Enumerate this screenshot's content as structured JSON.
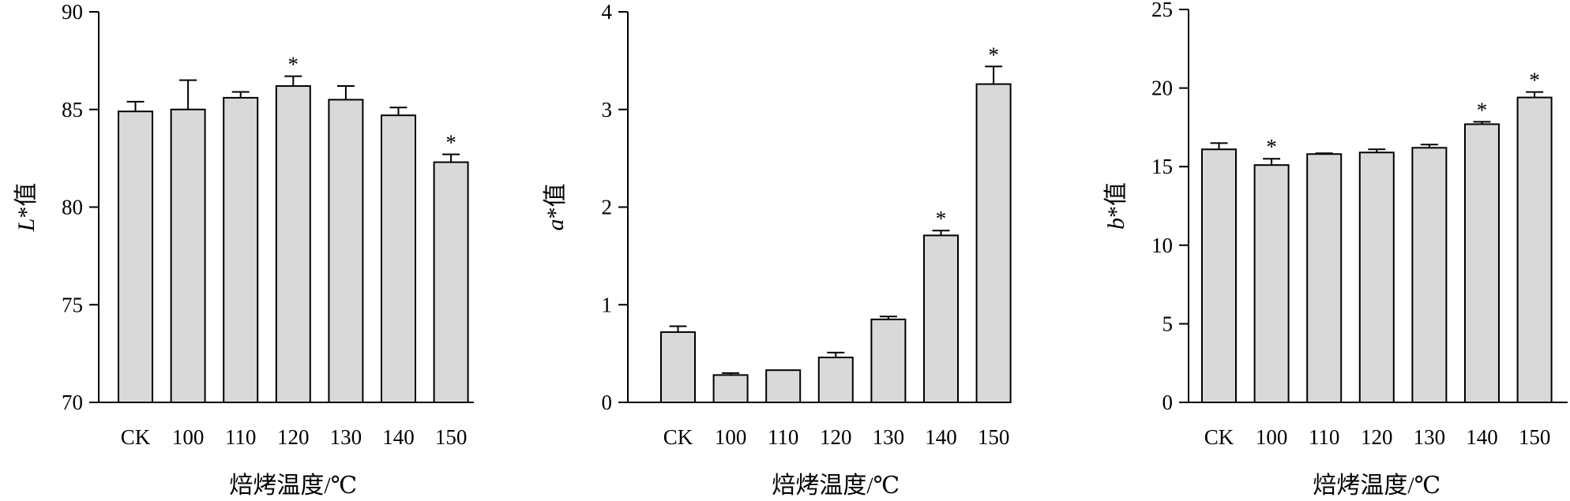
{
  "chart_data": [
    {
      "type": "bar",
      "categories": [
        "CK",
        "100",
        "110",
        "120",
        "130",
        "140",
        "150"
      ],
      "values": [
        84.9,
        85.0,
        85.6,
        86.2,
        85.5,
        84.7,
        82.3
      ],
      "errors": [
        0.5,
        1.5,
        0.3,
        0.5,
        0.7,
        0.4,
        0.4
      ],
      "significant": [
        false,
        false,
        false,
        true,
        false,
        false,
        true
      ],
      "marker": "*",
      "ylim": [
        70,
        90
      ],
      "yticks": [
        70,
        75,
        80,
        85,
        90
      ],
      "ylabel_var": "L",
      "ylabel_suffix": "*值",
      "xlabel": "焙烤温度/℃"
    },
    {
      "type": "bar",
      "categories": [
        "CK",
        "100",
        "110",
        "120",
        "130",
        "140",
        "150"
      ],
      "values": [
        0.72,
        0.28,
        0.33,
        0.46,
        0.85,
        1.71,
        3.26
      ],
      "errors": [
        0.06,
        0.02,
        0.0,
        0.05,
        0.03,
        0.05,
        0.18
      ],
      "significant": [
        false,
        false,
        false,
        false,
        false,
        true,
        true
      ],
      "marker": "*",
      "ylim": [
        0,
        4
      ],
      "yticks": [
        0,
        1,
        2,
        3,
        4
      ],
      "ylabel_var": "a",
      "ylabel_suffix": "*值",
      "xlabel": "焙烤温度/℃"
    },
    {
      "type": "bar",
      "categories": [
        "CK",
        "100",
        "110",
        "120",
        "130",
        "140",
        "150"
      ],
      "values": [
        16.1,
        15.1,
        15.8,
        15.9,
        16.2,
        17.7,
        19.4
      ],
      "errors": [
        0.4,
        0.4,
        0.05,
        0.2,
        0.2,
        0.15,
        0.35
      ],
      "significant": [
        false,
        true,
        false,
        false,
        false,
        true,
        true
      ],
      "marker": "*",
      "ylim": [
        0,
        25
      ],
      "yticks": [
        0,
        5,
        10,
        15,
        20,
        25
      ],
      "ylabel_var": "b",
      "ylabel_suffix": "*值",
      "xlabel": "焙烤温度/℃"
    }
  ]
}
